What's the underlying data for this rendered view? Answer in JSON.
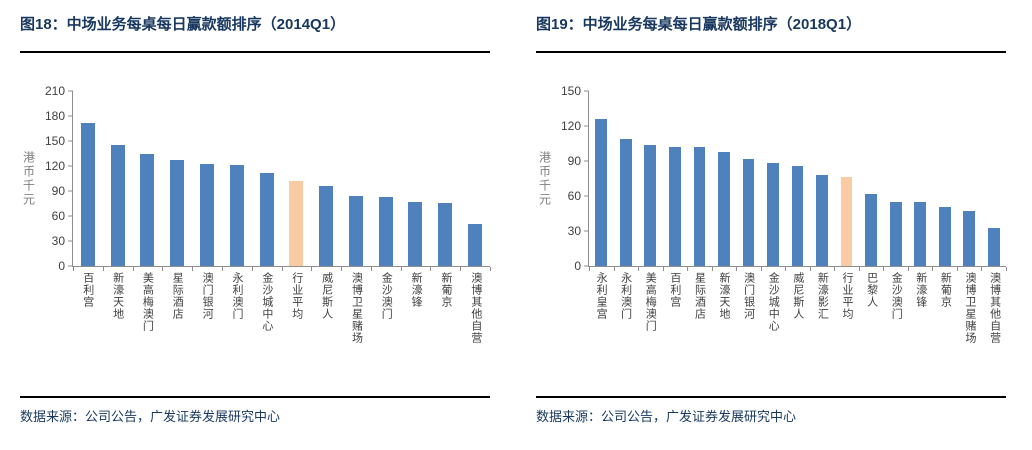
{
  "panels": [
    {
      "title": "图18：中场业务每桌每日赢款额排序（2014Q1）",
      "source": "数据来源：公司公告，广发证券发展研究中心"
    },
    {
      "title": "图19：中场业务每桌每日赢款额排序（2018Q1）",
      "source": "数据来源：公司公告，广发证券发展研究中心"
    }
  ],
  "colors": {
    "bar_blue": "#4F81BD",
    "bar_highlight": "#F9CBA4",
    "title_navy": "#17375E",
    "rule_black": "#000000",
    "axis_gray": "#8E8E8E",
    "tick_label_gray": "#3F3F3F",
    "axis_title_gray": "#7F7F7F"
  },
  "chart_data": [
    {
      "type": "bar",
      "title": "中场业务每桌每日赢款额排序（2014Q1）",
      "xlabel": "",
      "ylabel": "港币千元",
      "ylim": [
        0,
        210
      ],
      "ytick_step": 30,
      "grid": false,
      "legend": "none",
      "highlight_category": "行业平均",
      "categories": [
        "百利宫",
        "新濠天地",
        "美高梅澳门",
        "星际酒店",
        "澳门银河",
        "永利澳门",
        "金沙城中心",
        "行业平均",
        "威尼斯人",
        "澳博卫星赌场",
        "金沙澳门",
        "新濠锋",
        "新葡京",
        "澳博其他自营"
      ],
      "values": [
        172,
        145,
        135,
        127,
        122,
        121,
        112,
        102,
        96,
        84,
        83,
        77,
        76,
        50
      ]
    },
    {
      "type": "bar",
      "title": "中场业务每桌每日赢款额排序（2018Q1）",
      "xlabel": "",
      "ylabel": "港币千元",
      "ylim": [
        0,
        150
      ],
      "ytick_step": 30,
      "grid": false,
      "legend": "none",
      "highlight_category": "行业平均",
      "categories": [
        "永利皇宫",
        "永利澳门",
        "美高梅澳门",
        "百利宫",
        "星际酒店",
        "新濠天地",
        "澳门银河",
        "金沙城中心",
        "威尼斯人",
        "新濠影汇",
        "行业平均",
        "巴黎人",
        "金沙澳门",
        "新濠锋",
        "新葡京",
        "澳博卫星赌场",
        "澳博其他自营"
      ],
      "values": [
        126,
        109,
        104,
        102,
        102,
        98,
        92,
        88,
        86,
        78,
        76,
        62,
        55,
        55,
        51,
        47,
        33
      ]
    }
  ]
}
